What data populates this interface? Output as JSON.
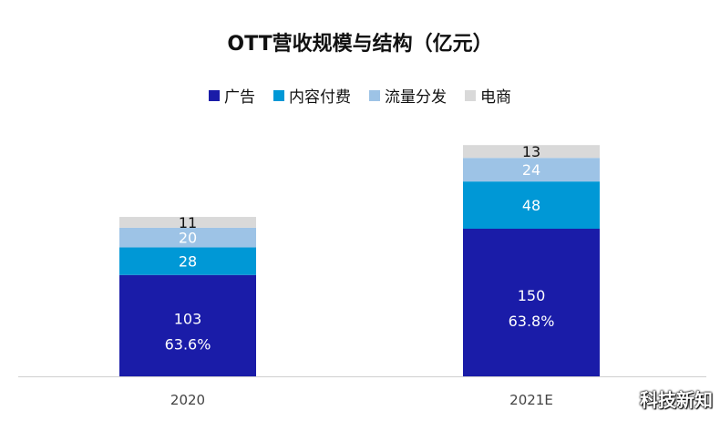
{
  "chart_data": {
    "type": "bar",
    "stacked": true,
    "title": "OTT营收规模与结构（亿元）",
    "categories": [
      "2020",
      "2021E"
    ],
    "series": [
      {
        "name": "广告",
        "values": [
          103,
          150
        ],
        "color": "#1a1ca8",
        "share_labels": [
          "63.6%",
          "63.8%"
        ]
      },
      {
        "name": "内容付费",
        "values": [
          28,
          48
        ],
        "color": "#0098d6"
      },
      {
        "name": "流量分发",
        "values": [
          20,
          24
        ],
        "color": "#9dc3e6"
      },
      {
        "name": "电商",
        "values": [
          11,
          13
        ],
        "color": "#d9d9d9"
      }
    ],
    "legend_position": "top",
    "grid": false,
    "xlabel": "",
    "ylabel": ""
  },
  "watermark": "科技新知"
}
